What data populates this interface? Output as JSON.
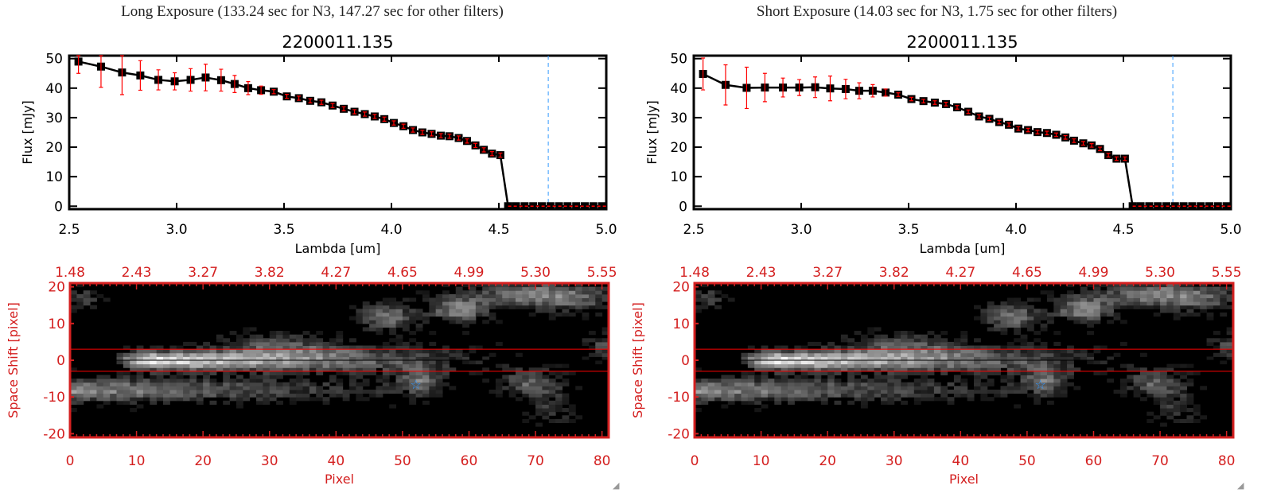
{
  "panels": [
    {
      "exposure_title": "Long Exposure (133.24 sec for N3, 147.27 sec for other filters)"
    },
    {
      "exposure_title": "Short Exposure (14.03 sec for N3, 1.75 sec for other filters)"
    }
  ],
  "colors": {
    "line": "#000000",
    "errorbar": "#ff0000",
    "cutoff_line": "#3399ff",
    "image_axes": "#d42020",
    "aperture_lines": "#ff0000",
    "star_marker": "#3399ff"
  },
  "chart_data": [
    {
      "type": "line",
      "title": "2200011.135",
      "xlabel": "Lambda [um]",
      "ylabel": "Flux [mJy]",
      "xlim": [
        2.5,
        5.0
      ],
      "ylim": [
        -1,
        51
      ],
      "xticks": [
        "2.5",
        "3.0",
        "3.5",
        "4.0",
        "4.5",
        "5.0"
      ],
      "yticks": [
        "0",
        "10",
        "20",
        "30",
        "40",
        "50"
      ],
      "cutoff_lambda": 4.73,
      "x": [
        2.543,
        2.648,
        2.746,
        2.831,
        2.915,
        2.991,
        3.065,
        3.135,
        3.207,
        3.27,
        3.333,
        3.393,
        3.452,
        3.513,
        3.569,
        3.622,
        3.674,
        3.726,
        3.778,
        3.828,
        3.876,
        3.922,
        3.967,
        4.011,
        4.056,
        4.1,
        4.144,
        4.187,
        4.23,
        4.27,
        4.313,
        4.352,
        4.391,
        4.43,
        4.468,
        4.507,
        4.543,
        4.58,
        4.62,
        4.66,
        4.7,
        4.74,
        4.78,
        4.82,
        4.86,
        4.9,
        4.94,
        4.98
      ],
      "y": [
        49.0,
        47.3,
        45.3,
        44.3,
        42.8,
        42.3,
        42.8,
        43.6,
        42.7,
        41.4,
        40.0,
        39.3,
        38.8,
        37.2,
        36.6,
        35.7,
        35.2,
        34.1,
        33.0,
        32.0,
        31.2,
        30.4,
        29.5,
        28.2,
        27.1,
        25.8,
        25.0,
        24.5,
        23.9,
        23.7,
        23.1,
        22.1,
        20.6,
        19.1,
        17.8,
        17.3,
        0,
        0,
        0,
        0,
        0,
        0,
        0,
        0,
        0,
        0,
        0,
        0
      ],
      "err": [
        4,
        7,
        7.5,
        5,
        3.4,
        2.9,
        3.8,
        4.5,
        3.7,
        2.9,
        2.2,
        1.4,
        0.7,
        0.7,
        0.7,
        0.7,
        0.7,
        0.7,
        0.7,
        0.7,
        0.7,
        0.7,
        0.7,
        0.7,
        0.7,
        0.7,
        0.7,
        0.7,
        0.7,
        0.7,
        0.7,
        0.7,
        0.7,
        0.7,
        0.7,
        0.7,
        0,
        0,
        0,
        0,
        0,
        0,
        0,
        0,
        0,
        0,
        0,
        0
      ]
    },
    {
      "type": "line",
      "title": "2200011.135",
      "xlabel": "Lambda [um]",
      "ylabel": "Flux [mJy]",
      "xlim": [
        2.5,
        5.0
      ],
      "ylim": [
        -1,
        51
      ],
      "xticks": [
        "2.5",
        "3.0",
        "3.5",
        "4.0",
        "4.5",
        "5.0"
      ],
      "yticks": [
        "0",
        "10",
        "20",
        "30",
        "40",
        "50"
      ],
      "cutoff_lambda": 4.73,
      "x": [
        2.543,
        2.648,
        2.746,
        2.831,
        2.915,
        2.991,
        3.065,
        3.135,
        3.207,
        3.27,
        3.333,
        3.393,
        3.452,
        3.513,
        3.569,
        3.622,
        3.674,
        3.726,
        3.778,
        3.828,
        3.876,
        3.922,
        3.967,
        4.011,
        4.056,
        4.1,
        4.144,
        4.187,
        4.23,
        4.27,
        4.313,
        4.352,
        4.391,
        4.43,
        4.468,
        4.507,
        4.543,
        4.58,
        4.62,
        4.66,
        4.7,
        4.74,
        4.78,
        4.82,
        4.86,
        4.9,
        4.94,
        4.98
      ],
      "y": [
        44.8,
        41.1,
        40.1,
        40.2,
        40.2,
        40.2,
        40.3,
        39.9,
        39.7,
        39.1,
        39.1,
        38.5,
        37.8,
        36.3,
        35.6,
        35.1,
        34.6,
        33.5,
        32.0,
        30.4,
        29.6,
        28.5,
        27.6,
        26.3,
        25.8,
        25.1,
        24.8,
        24.2,
        23.3,
        22.2,
        21.3,
        20.6,
        19.4,
        17.3,
        16.1,
        16.1,
        0,
        0,
        0,
        0,
        0,
        0,
        0,
        0,
        0,
        0,
        0,
        0
      ],
      "err": [
        5.4,
        6.8,
        7,
        4.8,
        3.2,
        2.7,
        3.5,
        4.2,
        3.3,
        2.7,
        2.1,
        1.2,
        0.6,
        0.6,
        0.6,
        0.6,
        0.6,
        0.6,
        0.6,
        0.6,
        0.6,
        0.6,
        0.6,
        0.6,
        0.6,
        0.6,
        0.6,
        0.6,
        0.6,
        0.6,
        0.6,
        0.6,
        0.6,
        0.6,
        0.6,
        0.6,
        0,
        0,
        0,
        0,
        0,
        0,
        0,
        0,
        0,
        0,
        0,
        0
      ]
    },
    {
      "type": "heatmap",
      "xlabel": "Pixel",
      "ylabel": "Space Shift [pixel]",
      "xlim": [
        0,
        81
      ],
      "ylim": [
        -21,
        21
      ],
      "xticks": [
        "0",
        "10",
        "20",
        "30",
        "40",
        "50",
        "60",
        "70",
        "80"
      ],
      "yticks": [
        "-20",
        "-10",
        "0",
        "10",
        "20"
      ],
      "top_xticks": [
        "1.48",
        "2.43",
        "3.27",
        "3.82",
        "4.27",
        "4.65",
        "4.99",
        "5.30",
        "5.55"
      ],
      "aperture": [
        -3,
        3
      ],
      "star": {
        "x": 52,
        "y": -6.5
      },
      "colormap": "gray"
    },
    {
      "type": "heatmap",
      "xlabel": "Pixel",
      "ylabel": "Space Shift [pixel]",
      "xlim": [
        0,
        81
      ],
      "ylim": [
        -21,
        21
      ],
      "xticks": [
        "0",
        "10",
        "20",
        "30",
        "40",
        "50",
        "60",
        "70",
        "80"
      ],
      "yticks": [
        "-20",
        "-10",
        "0",
        "10",
        "20"
      ],
      "top_xticks": [
        "1.48",
        "2.43",
        "3.27",
        "3.82",
        "4.27",
        "4.65",
        "4.99",
        "5.30",
        "5.55"
      ],
      "aperture": [
        -3,
        3
      ],
      "star": {
        "x": 52,
        "y": -6.5
      },
      "colormap": "gray"
    }
  ]
}
